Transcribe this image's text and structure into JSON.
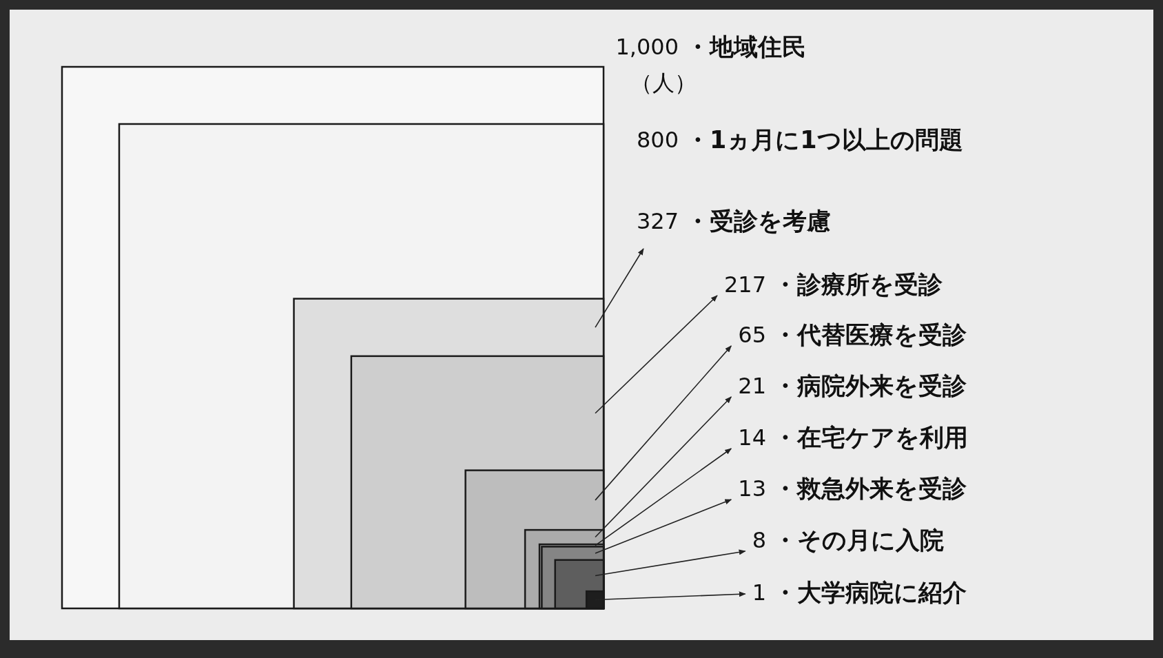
{
  "chart_data": {
    "type": "other",
    "categories": [
      "・地域住民",
      "・1ヵ月に1つ以上の問題",
      "・受診を考慮",
      "・診療所を受診",
      "・代替医療を受診",
      "・病院外来を受診",
      "・在宅ケアを利用",
      "・救急外来を受診",
      "・その月に入院",
      "・大学病院に紹介"
    ],
    "values": [
      1000,
      800,
      327,
      217,
      65,
      21,
      14,
      13,
      8,
      1
    ],
    "value_labels": [
      "1,000",
      "800",
      "327",
      "217",
      "65",
      "21",
      "14",
      "13",
      "8",
      "1"
    ],
    "colors": [
      "#f7f7f7",
      "#f3f3f3",
      "#dedede",
      "#cecece",
      "#bdbdbd",
      "#ababab",
      "#979797",
      "#858585",
      "#5e5e5e",
      "#1e1e1e"
    ],
    "annotations": [
      "（人）"
    ]
  }
}
